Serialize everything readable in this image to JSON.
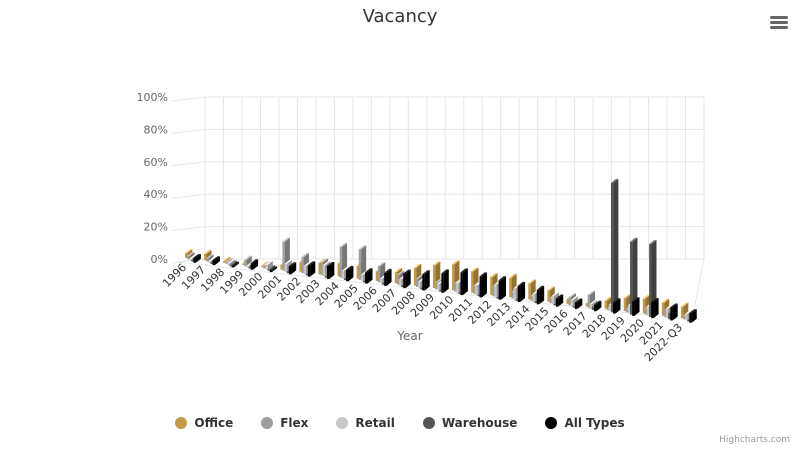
{
  "chart_data": {
    "type": "bar",
    "title": "Vacancy",
    "xlabel": "Year",
    "ylabel": "",
    "ylim": [
      0,
      100
    ],
    "yticks": [
      "0%",
      "20%",
      "40%",
      "60%",
      "80%",
      "100%"
    ],
    "three_d": true,
    "grid": true,
    "legend_position": "bottom",
    "categories": [
      "1996",
      "1997",
      "1998",
      "1999",
      "2000",
      "2001",
      "2002",
      "2003",
      "2004",
      "2005",
      "2006",
      "2007",
      "2008",
      "2009",
      "2010",
      "2011",
      "2012",
      "2013",
      "2014",
      "2015",
      "2016",
      "2017",
      "2018",
      "2019",
      "2020",
      "2021",
      "2022-Q3"
    ],
    "series": [
      {
        "name": "Office",
        "color": "#c49a44",
        "values": [
          3,
          4,
          1,
          1,
          1,
          3,
          6,
          7,
          8,
          8,
          6,
          7,
          11,
          14,
          16,
          13,
          11,
          12,
          10,
          7,
          3,
          2,
          5,
          8,
          9,
          8,
          7
        ]
      },
      {
        "name": "Flex",
        "color": "#9e9e9e",
        "values": [
          2,
          2,
          1,
          4,
          2,
          18,
          10,
          8,
          19,
          19,
          10,
          6,
          5,
          4,
          5,
          5,
          6,
          4,
          3,
          3,
          5,
          8,
          1,
          2,
          4,
          4,
          2
        ]
      },
      {
        "name": "Retail",
        "color": "#c8c8c8",
        "values": [
          1,
          1,
          1,
          1,
          3,
          5,
          5,
          7,
          5,
          4,
          3,
          4,
          4,
          4,
          6,
          6,
          8,
          7,
          5,
          5,
          4,
          3,
          4,
          5,
          6,
          6,
          4
        ]
      },
      {
        "name": "Warehouse",
        "color": "#555555",
        "values": [
          1,
          1,
          1,
          1,
          1,
          1,
          1,
          1,
          1,
          1,
          1,
          1,
          1,
          1,
          1,
          1,
          1,
          1,
          1,
          1,
          1,
          2,
          80,
          45,
          45,
          4,
          1
        ]
      },
      {
        "name": "All Types",
        "color": "#000000",
        "values": [
          3,
          3,
          1,
          4,
          1,
          5,
          7,
          8,
          7,
          7,
          8,
          9,
          10,
          12,
          14,
          13,
          12,
          10,
          9,
          5,
          4,
          4,
          7,
          9,
          10,
          8,
          6
        ]
      }
    ]
  },
  "menu": {
    "icon": "hamburger-menu-icon"
  },
  "credits": "Highcharts.com"
}
